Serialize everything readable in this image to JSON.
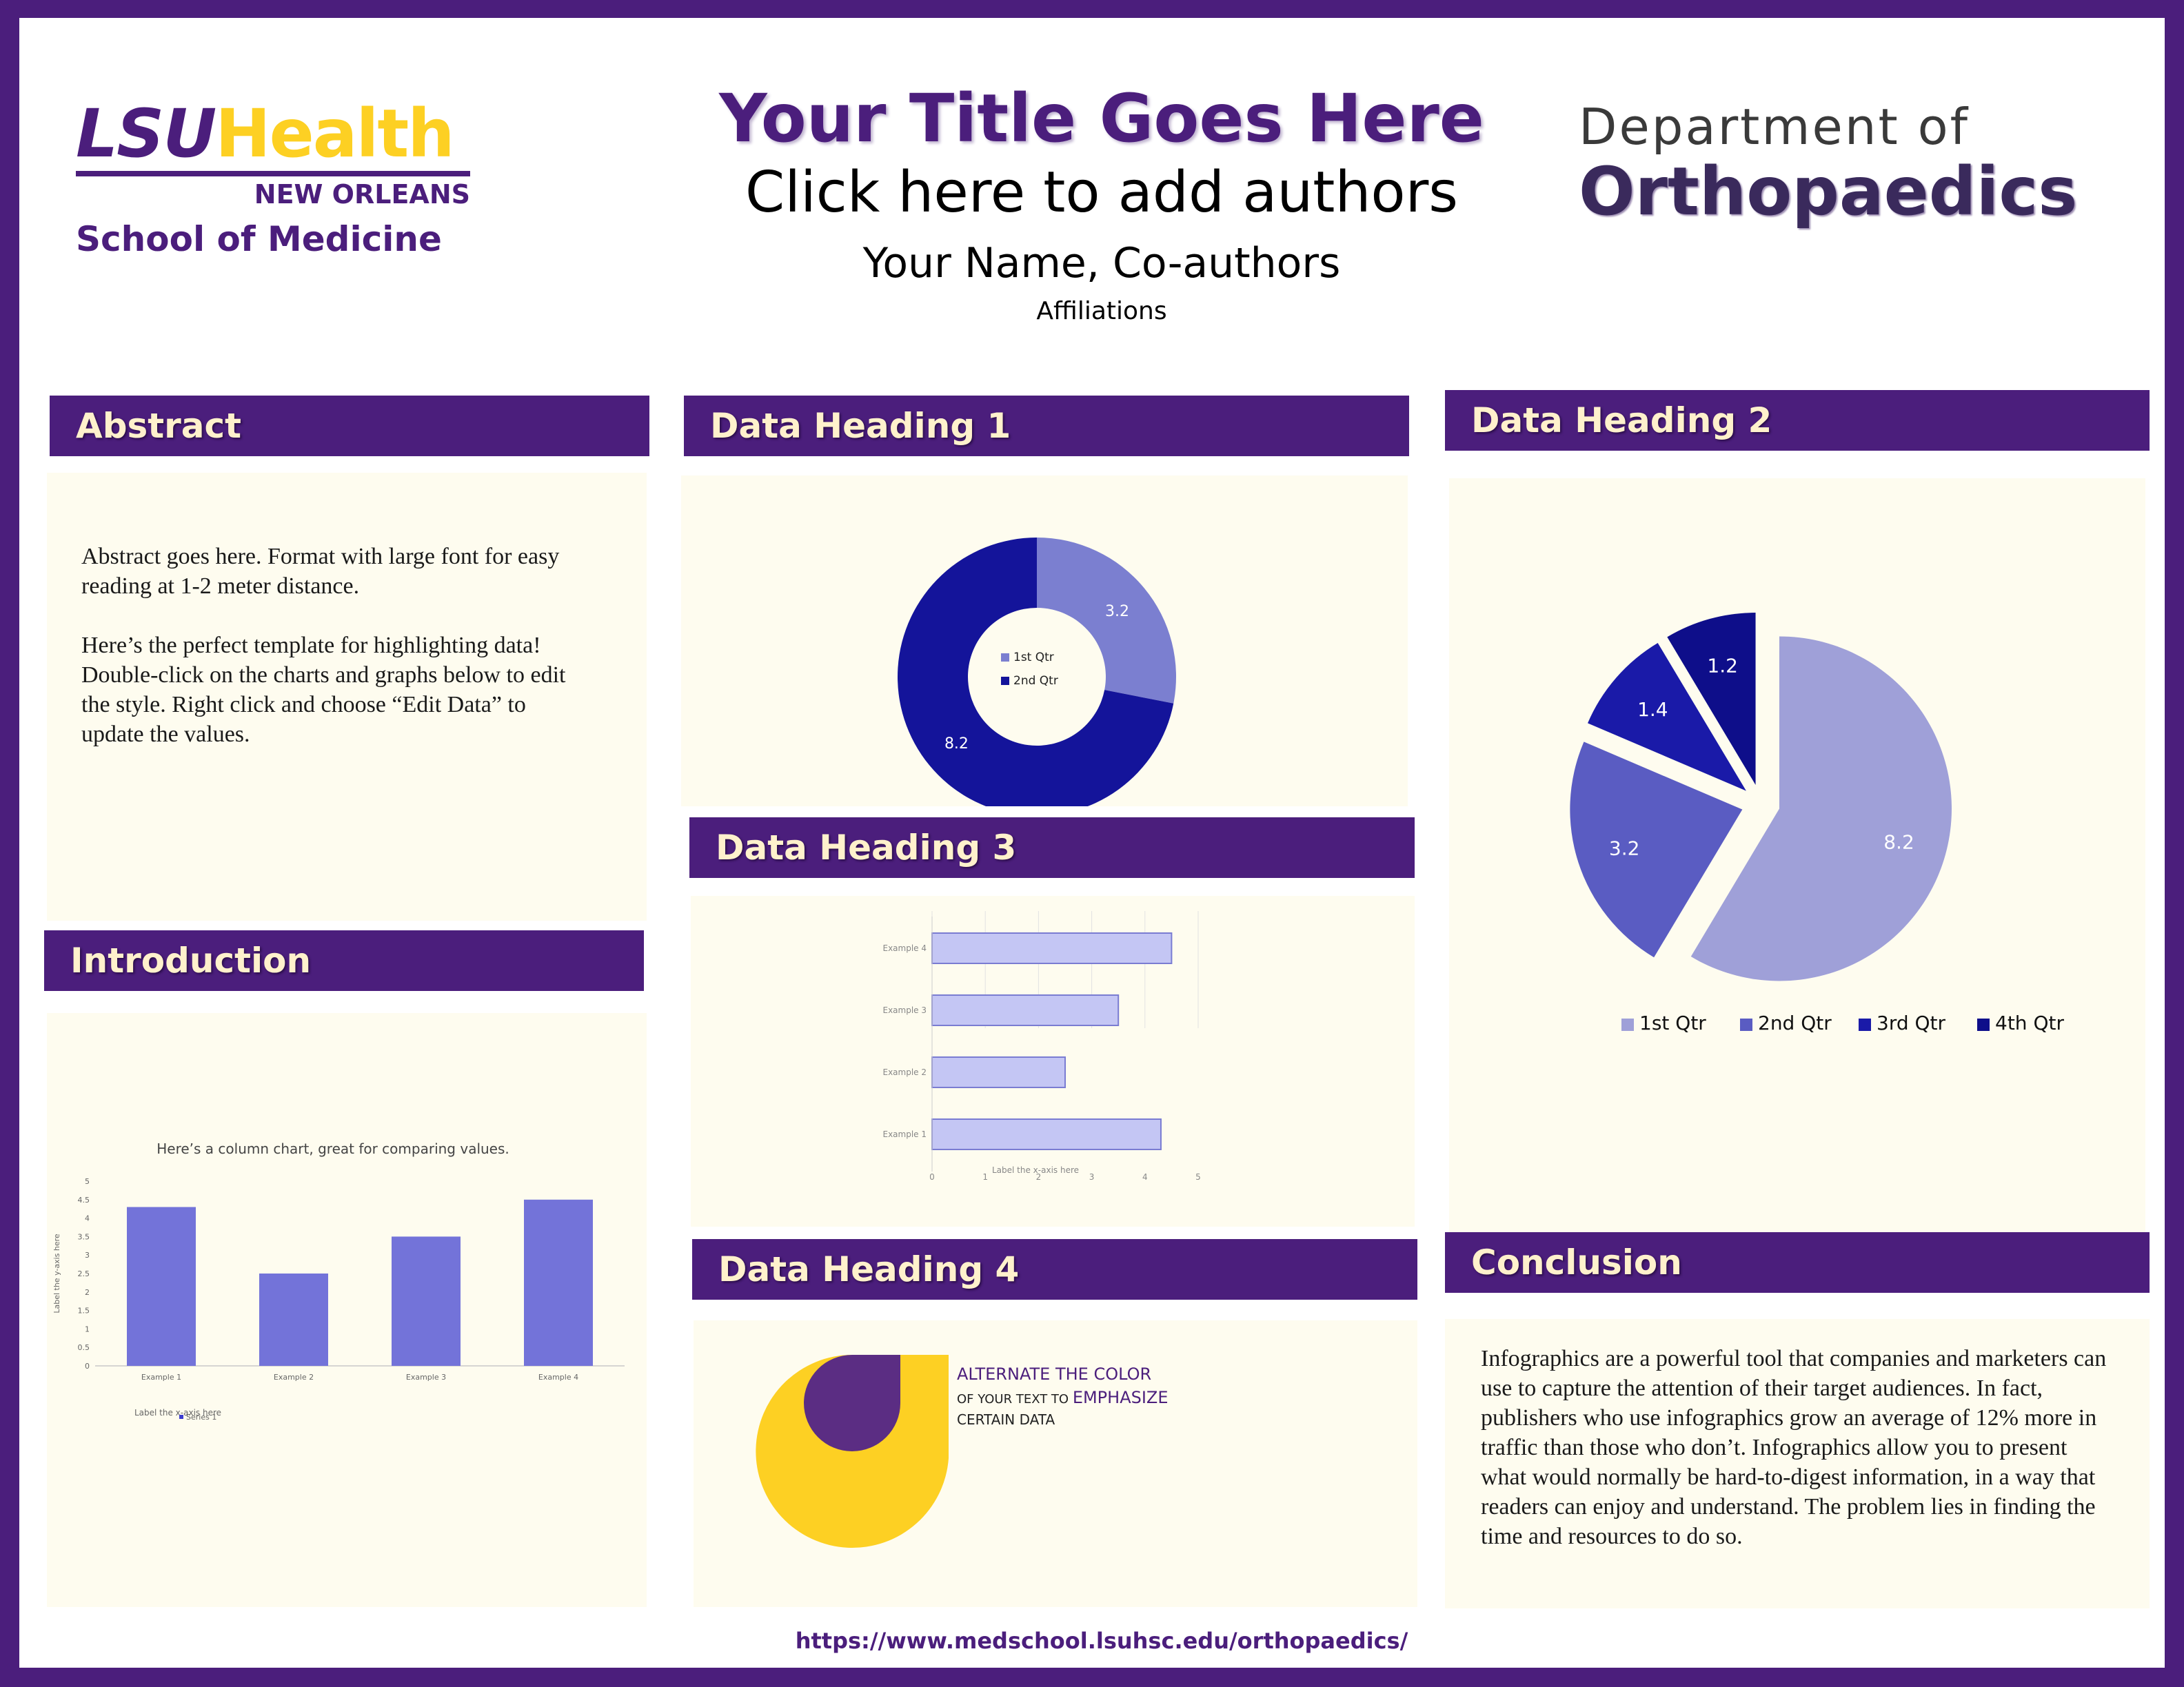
{
  "logo_left": {
    "lsu": "LSU",
    "health": "Health",
    "city": "NEW ORLEANS",
    "school": "School of Medicine"
  },
  "logo_right": {
    "line1": "Department of",
    "line2": "Orthopaedics"
  },
  "header": {
    "title": "Your Title Goes Here",
    "authors_prompt": "Click here to add authors",
    "names": "Your Name, Co-authors",
    "affiliations": "Affiliations"
  },
  "sections": {
    "abstract": {
      "heading": "Abstract",
      "para1": "Abstract goes here.  Format with large font for easy reading at 1-2 meter distance.",
      "para2": "Here’s the perfect template for highlighting data! Double-click on the charts and graphs below to edit the style. Right click and choose “Edit Data” to update the values."
    },
    "introduction": {
      "heading": "Introduction"
    },
    "data1": {
      "heading": "Data Heading 1"
    },
    "data2": {
      "heading": "Data Heading 2"
    },
    "data3": {
      "heading": "Data Heading 3"
    },
    "data4": {
      "heading": "Data Heading 4",
      "line1": "ALTERNATE THE COLOR",
      "line2a": "OF YOUR TEXT TO ",
      "line2b": "EMPHASIZE",
      "line3": "CERTAIN DATA"
    },
    "conclusion": {
      "heading": "Conclusion",
      "text": "Infographics are a powerful tool that companies and marketers can use to capture the attention of their target audiences. In fact, publishers who use infographics grow an average of 12% more in traffic than those who don’t. Infographics allow you to present what would normally be hard-to-digest information, in a way that readers can enjoy and understand. The problem lies in finding the time and resources to do so."
    }
  },
  "footer": {
    "url": "https://www.medschool.lsuhsc.edu/orthopaedics/"
  },
  "colors": {
    "purple": "#4b1e7c",
    "gold": "#fdd023",
    "panel": "#fefcef"
  },
  "chart_data": [
    {
      "id": "donut",
      "type": "pie",
      "categories": [
        "1st Qtr",
        "2nd Qtr"
      ],
      "values": [
        3.2,
        8.2
      ],
      "colors": [
        "#7b7fd0",
        "#14149a"
      ],
      "legend": "center"
    },
    {
      "id": "exploded_pie",
      "type": "pie",
      "categories": [
        "1st Qtr",
        "2nd Qtr",
        "3rd Qtr",
        "4th Qtr"
      ],
      "values": [
        8.2,
        3.2,
        1.4,
        1.2
      ],
      "colors": [
        "#9fa0d8",
        "#5a5cc2",
        "#1a1aa8",
        "#0e0e8a"
      ],
      "legend": "bottom"
    },
    {
      "id": "hbar",
      "type": "bar",
      "orientation": "horizontal",
      "categories": [
        "Example 1",
        "Example 2",
        "Example 3",
        "Example 4"
      ],
      "values": [
        4.3,
        2.5,
        3.5,
        4.5
      ],
      "xlim": [
        0,
        5
      ],
      "xticks": [
        "0",
        "1",
        "2",
        "3",
        "4",
        "5"
      ],
      "xlabel": "Label the x-axis here",
      "grid": true
    },
    {
      "id": "column",
      "type": "bar",
      "title": "Here’s a column chart, great for comparing values.",
      "categories": [
        "Example 1",
        "Example 2",
        "Example 3",
        "Example 4"
      ],
      "series": [
        {
          "name": "Series 1",
          "values": [
            4.3,
            2.5,
            3.5,
            4.5
          ]
        }
      ],
      "ylim": [
        0,
        5
      ],
      "yticks": [
        "0",
        "0.5",
        "1",
        "1.5",
        "2",
        "2.5",
        "3",
        "3.5",
        "4",
        "4.5",
        "5"
      ],
      "xlabel": "Label the x-axis here",
      "ylabel": "Label the y-axis here",
      "legend": "bottom"
    }
  ]
}
